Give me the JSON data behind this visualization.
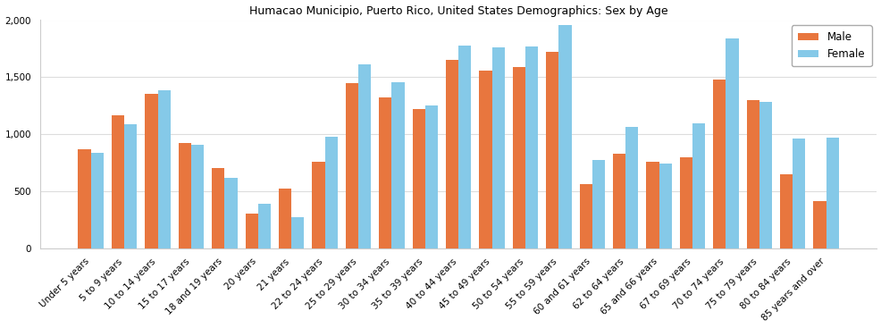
{
  "title": "Humacao Municipio, Puerto Rico, United States Demographics: Sex by Age",
  "categories": [
    "Under 5 years",
    "5 to 9 years",
    "10 to 14 years",
    "15 to 17 years",
    "18 and 19 years",
    "20 years",
    "21 years",
    "22 to 24 years",
    "25 to 29 years",
    "30 to 34 years",
    "35 to 39 years",
    "40 to 44 years",
    "45 to 49 years",
    "50 to 54 years",
    "55 to 59 years",
    "60 and 61 years",
    "62 to 64 years",
    "65 and 66 years",
    "67 to 69 years",
    "70 to 74 years",
    "75 to 79 years",
    "80 to 84 years",
    "85 years and over"
  ],
  "male": [
    870,
    1165,
    1350,
    920,
    700,
    305,
    525,
    760,
    1450,
    1320,
    1220,
    1650,
    1555,
    1590,
    1720,
    560,
    830,
    760,
    800,
    1480,
    1300,
    650,
    415
  ],
  "female": [
    840,
    1090,
    1385,
    905,
    620,
    390,
    270,
    975,
    1610,
    1455,
    1250,
    1780,
    1760,
    1765,
    1955,
    775,
    1065,
    745,
    1095,
    1840,
    1285,
    965,
    970
  ],
  "male_color": "#e8763e",
  "female_color": "#85c9e8",
  "ylim": [
    0,
    2000
  ],
  "yticks": [
    0,
    500,
    1000,
    1500,
    2000
  ],
  "bar_width": 0.38,
  "figsize": [
    9.87,
    3.67
  ],
  "dpi": 100,
  "title_fontsize": 9,
  "tick_fontsize": 7.5,
  "legend_fontsize": 8.5
}
